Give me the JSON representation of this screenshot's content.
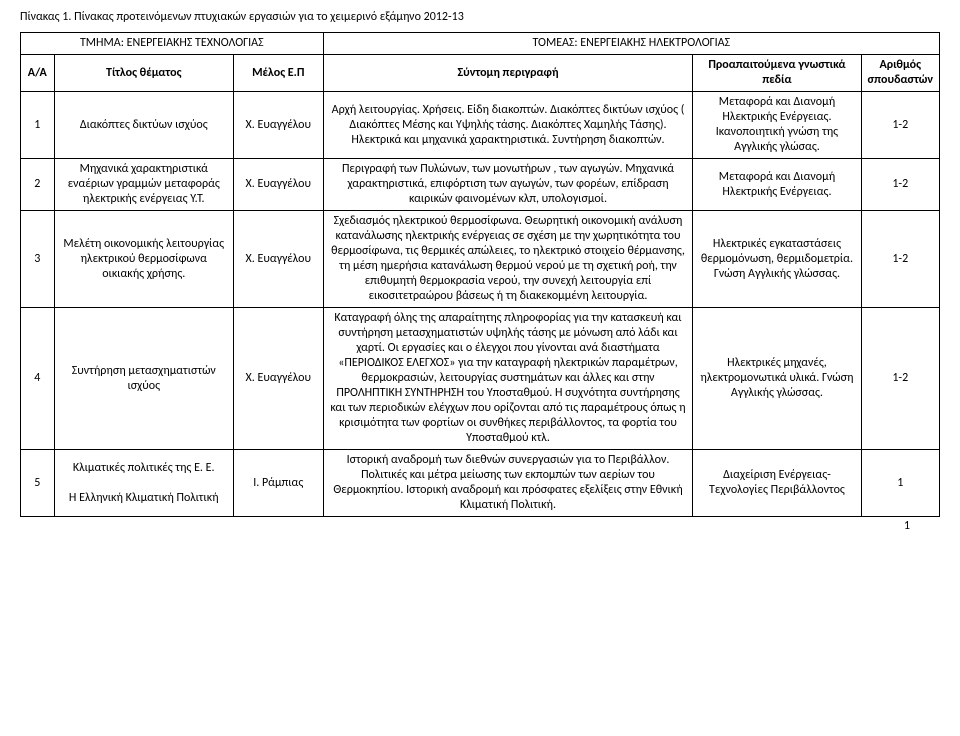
{
  "page_title": "Πίνακας 1. Πίνακας προτεινόμενων πτυχιακών εργασιών για το χειμερινό εξάμηνο 2012-13",
  "dept_left": "ΤΜΗΜΑ: ΕΝΕΡΓΕΙΑΚΗΣ ΤΕΧΝΟΛΟΓΙΑΣ",
  "dept_right": "ΤΟΜΕΑΣ: ΕΝΕΡΓΕΙΑΚΗΣ ΗΛΕΚΤΡΟΛΟΓΙΑΣ",
  "columns": {
    "aa": "Α/Α",
    "title": "Τίτλος θέματος",
    "member": "Μέλος Ε.Π",
    "desc": "Σύντομη περιγραφή",
    "prereq": "Προαπαιτούμενα γνωστικά πεδία",
    "students": "Αριθμός σπουδαστών"
  },
  "rows": [
    {
      "aa": "1",
      "title": "Διακόπτες δικτύων ισχύος",
      "member": "Χ. Ευαγγέλου",
      "desc": "Αρχή λειτουργίας. Χρήσεις. Είδη διακοπτών. Διακόπτες δικτύων ισχύος ( Διακόπτες Μέσης και Υψηλής τάσης. Διακόπτες Χαμηλής Τάσης). Ηλεκτρικά και μηχανικά χαρακτηριστικά. Συντήρηση διακοπτών.",
      "prereq": "Μεταφορά και Διανομή Ηλεκτρικής Ενέργειας. Ικανοποιητική γνώση της Αγγλικής γλώσας.",
      "students": "1-2"
    },
    {
      "aa": "2",
      "title": "Μηχανικά χαρακτηριστικά εναέριων γραμμών μεταφοράς ηλεκτρικής ενέργειας Υ.Τ.",
      "member": "Χ. Ευαγγέλου",
      "desc": "Περιγραφή των Πυλώνων, των μονωτήρων , των αγωγών. Μηχανικά χαρακτηριστικά, επιφόρτιση των αγωγών, των φορέων, επίδραση καιρικών φαινομένων κλπ, υπολογισμοί.",
      "prereq": "Μεταφορά και Διανομή Ηλεκτρικής Ενέργειας.",
      "students": "1-2"
    },
    {
      "aa": "3",
      "title": "Μελέτη οικονομικής λειτουργίας ηλεκτρικού θερμοσίφωνα οικιακής χρήσης.",
      "member": "Χ. Ευαγγέλου",
      "desc": "Σχεδιασμός ηλεκτρικού θερμοσίφωνα. Θεωρητική οικονομική ανάλυση κατανάλωσης ηλεκτρικής ενέργειας σε σχέση με την χωρητικότητα του θερμοσίφωνα, τις θερμικές απώλειες,  το ηλεκτρικό στοιχείο θέρμανσης, τη μέση ημερήσια κατανάλωση θερμού νερού με τη σχετική ροή, την επιθυμητή θερμοκρασία νερού, την  συνεχή λειτουργία επί εικοσιτετραώρου βάσεως ή τη  διακεκομμένη λειτουργία.",
      "prereq": "Ηλεκτρικές εγκαταστάσεις θερμομόνωση, θερμιδομετρία. Γνώση Αγγλικής γλώσσας.",
      "students": "1-2"
    },
    {
      "aa": "4",
      "title": "Συντήρηση μετασχηματιστών ισχύος",
      "member": "Χ. Ευαγγέλου",
      "desc": "Καταγραφή όλης της απαραίτητης πληροφορίας για την κατασκευή και συντήρηση μετασχηματιστών υψηλής τάσης με μόνωση από λάδι και χαρτί. Οι εργασίες και ο έλεγχοι που γίνονται ανά διαστήματα «ΠΕΡΙΟΔΙΚΟΣ ΕΛΕΓΧΟΣ» για την καταγραφή ηλεκτρικών παραμέτρων, θερμοκρασιών, λειτουργίας συστημάτων και άλλες και στην ΠΡΟΛΗΠΤΙΚΗ ΣΥΝΤΗΡΗΣΗ του Υποσταθμού. Η συχνότητα συντήρησης και των περιοδικών ελέγχων που ορίζονται από τις παραμέτρους όπως η κρισιμότητα των φορτίων οι συνθήκες περιβάλλοντος, τα φορτία του Υποσταθμού κτλ.",
      "prereq": "Ηλεκτρικές μηχανές, ηλεκτρομονωτικά υλικά. Γνώση Αγγλικής γλώσσας.",
      "students": "1-2"
    },
    {
      "aa": "5",
      "title": "Κλιματικές πολιτικές της Ε. Ε.\n\nΗ Ελληνική Κλιματική Πολιτική",
      "member": "Ι. Ράμπιας",
      "desc": "Ιστορική αναδρομή των διεθνών συνεργασιών για το Περιβάλλον. Πολιτικές και μέτρα μείωσης των εκπομπών των αερίων του Θερμοκηπίου. Ιστορική αναδρομή και πρόσφατες εξελίξεις στην Εθνική Κλιματική Πολιτική.",
      "prereq": "Διαχείριση Ενέργειας- Τεχνολογίες Περιβάλλοντος",
      "students": "1"
    }
  ],
  "page_number": "1"
}
